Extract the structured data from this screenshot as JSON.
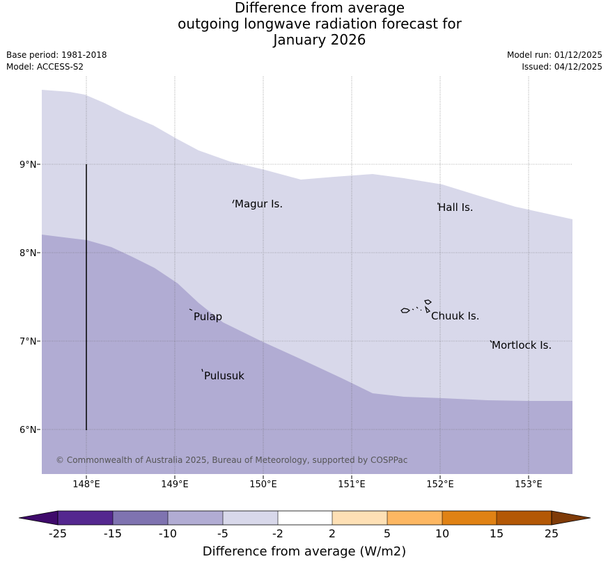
{
  "title": {
    "line1": "Difference from average",
    "line2": "outgoing longwave radiation forecast for",
    "line3": "January 2026"
  },
  "meta_left": {
    "base_period": "Base period: 1981-2018",
    "model": "Model: ACCESS-S2"
  },
  "meta_right": {
    "model_run": "Model run: 01/12/2025",
    "issued": "Issued: 04/12/2025"
  },
  "map": {
    "lat_labels": [
      "9°N",
      "8°N",
      "7°N",
      "6°N"
    ],
    "lon_labels": [
      "148°E",
      "149°E",
      "150°E",
      "151°E",
      "152°E",
      "153°E"
    ],
    "places": {
      "magur": "Magur Is.",
      "hall": "Hall Is.",
      "pulap": "Pulap",
      "chuuk": "Chuuk Is.",
      "mortlock": "Mortlock Is.",
      "pulusuk": "Pulusuk"
    },
    "copyright": "© Commonwealth of Australia 2025, Bureau of Meteorology, supported by COSPPac",
    "fill_colors": {
      "light_band": "#d8d8ea",
      "darker_band": "#b1acd3"
    }
  },
  "colorbar": {
    "title": "Difference from average (W/m2)",
    "ticks": [
      "-25",
      "-15",
      "-10",
      "-5",
      "-2",
      "2",
      "5",
      "10",
      "15",
      "25"
    ],
    "colors": [
      "#3f0a6b",
      "#54278f",
      "#7f73b0",
      "#b1acd3",
      "#d8d8ea",
      "#ffffff",
      "#fee0b5",
      "#fdb762",
      "#e08214",
      "#b35806",
      "#7f3b08"
    ]
  }
}
